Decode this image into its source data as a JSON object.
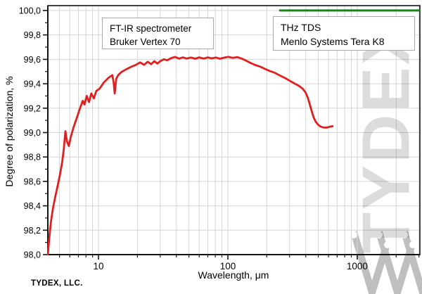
{
  "footer": {
    "company": "TYDEX, LLC."
  },
  "watermark": {
    "text": "TYDEX",
    "logo": "tydex-w-logo"
  },
  "annotations": {
    "box1": {
      "line1": "FT-IR spectrometer",
      "line2": "Bruker Vertex 70"
    },
    "box2": {
      "line1": "THz TDS",
      "line2": "Menlo Systems Tera K8"
    }
  },
  "chart_data": {
    "type": "line",
    "title": "",
    "xlabel": "Wavelength, μm",
    "ylabel": "Degree of polarization, %",
    "x_axis": {
      "scale": "log",
      "min": 4.06,
      "max": 3050,
      "major_ticks": [
        10,
        100,
        1000
      ],
      "tick_labels": [
        "10",
        "100",
        "1000"
      ],
      "minor_ticks": [
        5,
        6,
        7,
        8,
        9,
        20,
        30,
        40,
        50,
        60,
        70,
        80,
        90,
        200,
        300,
        400,
        500,
        600,
        700,
        800,
        900,
        2000,
        3000
      ]
    },
    "y_axis": {
      "min": 98.0,
      "max": 100.04,
      "tick_values": [
        98.0,
        98.2,
        98.4,
        98.6,
        98.8,
        99.0,
        99.2,
        99.4,
        99.6,
        99.8,
        100.0
      ],
      "tick_labels": [
        "98,0",
        "98,2",
        "98,4",
        "98,6",
        "98,8",
        "99,0",
        "99,2",
        "99,4",
        "99,6",
        "99,8",
        "100,0"
      ],
      "minor_ticks": [
        98.1,
        98.3,
        98.5,
        98.7,
        98.9,
        99.1,
        99.3,
        99.5,
        99.7,
        99.9
      ]
    },
    "grid": {
      "x": "minor",
      "y": "major",
      "color": "#d6d6d6"
    },
    "axis_color": "#141414",
    "legend_position": "inside-top",
    "series": [
      {
        "name": "FT-IR spectrometer Bruker Vertex 70",
        "color": "#e02020",
        "width": 2.8,
        "points": [
          [
            4.06,
            98.0
          ],
          [
            4.15,
            98.12
          ],
          [
            4.28,
            98.26
          ],
          [
            4.45,
            98.38
          ],
          [
            4.65,
            98.48
          ],
          [
            4.85,
            98.57
          ],
          [
            5.05,
            98.66
          ],
          [
            5.25,
            98.76
          ],
          [
            5.4,
            98.87
          ],
          [
            5.55,
            99.01
          ],
          [
            5.7,
            98.93
          ],
          [
            5.9,
            98.89
          ],
          [
            6.1,
            98.96
          ],
          [
            6.4,
            99.04
          ],
          [
            6.8,
            99.12
          ],
          [
            7.2,
            99.2
          ],
          [
            7.55,
            99.26
          ],
          [
            7.8,
            99.23
          ],
          [
            8.1,
            99.3
          ],
          [
            8.45,
            99.25
          ],
          [
            8.8,
            99.32
          ],
          [
            9.2,
            99.28
          ],
          [
            9.6,
            99.34
          ],
          [
            10.2,
            99.36
          ],
          [
            11.0,
            99.41
          ],
          [
            12.0,
            99.45
          ],
          [
            12.8,
            99.47
          ],
          [
            13.1,
            99.41
          ],
          [
            13.35,
            99.32
          ],
          [
            13.7,
            99.44
          ],
          [
            14.2,
            99.47
          ],
          [
            15.0,
            99.495
          ],
          [
            16.5,
            99.52
          ],
          [
            18.0,
            99.54
          ],
          [
            19.5,
            99.555
          ],
          [
            21.0,
            99.575
          ],
          [
            22.5,
            99.555
          ],
          [
            24.0,
            99.58
          ],
          [
            25.5,
            99.56
          ],
          [
            27.0,
            99.585
          ],
          [
            28.5,
            99.565
          ],
          [
            30.0,
            99.585
          ],
          [
            32.0,
            99.6
          ],
          [
            34.0,
            99.592
          ],
          [
            36.5,
            99.61
          ],
          [
            39.0,
            99.62
          ],
          [
            42.0,
            99.606
          ],
          [
            45.0,
            99.616
          ],
          [
            48.0,
            99.606
          ],
          [
            52.0,
            99.615
          ],
          [
            56.0,
            99.605
          ],
          [
            60.0,
            99.616
          ],
          [
            65.0,
            99.606
          ],
          [
            70.0,
            99.616
          ],
          [
            75.0,
            99.608
          ],
          [
            81.0,
            99.615
          ],
          [
            87.0,
            99.605
          ],
          [
            94.0,
            99.614
          ],
          [
            101,
            99.62
          ],
          [
            109,
            99.612
          ],
          [
            118,
            99.618
          ],
          [
            128,
            99.606
          ],
          [
            138,
            99.59
          ],
          [
            150,
            99.57
          ],
          [
            163,
            99.553
          ],
          [
            178,
            99.54
          ],
          [
            193,
            99.522
          ],
          [
            210,
            99.505
          ],
          [
            230,
            99.49
          ],
          [
            252,
            99.468
          ],
          [
            276,
            99.447
          ],
          [
            300,
            99.425
          ],
          [
            326,
            99.403
          ],
          [
            352,
            99.385
          ],
          [
            378,
            99.36
          ],
          [
            398,
            99.33
          ],
          [
            415,
            99.285
          ],
          [
            430,
            99.23
          ],
          [
            445,
            99.175
          ],
          [
            460,
            99.125
          ],
          [
            477,
            99.09
          ],
          [
            495,
            99.068
          ],
          [
            515,
            99.052
          ],
          [
            540,
            99.043
          ],
          [
            565,
            99.04
          ],
          [
            590,
            99.042
          ],
          [
            615,
            99.048
          ],
          [
            645,
            99.052
          ]
        ]
      },
      {
        "name": "THz TDS Menlo Systems Tera K8",
        "color": "#108a10",
        "width": 3,
        "points": [
          [
            253,
            100.0
          ],
          [
            3050,
            100.0
          ]
        ]
      }
    ]
  }
}
